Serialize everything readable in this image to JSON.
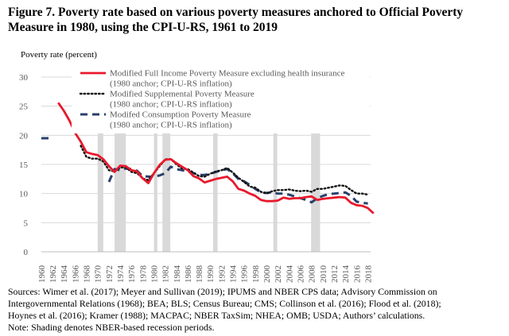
{
  "figure_title": "Figure 7. Poverty rate based on various poverty measures anchored to Official Poverty Measure in 1980, using the CPI-U-RS, 1961 to 2019",
  "chart_data": {
    "type": "line",
    "ylabel": "Poverty rate (percent)",
    "xlabel": "",
    "ylim": [
      0,
      30
    ],
    "yticks": [
      0,
      5,
      10,
      15,
      20,
      25,
      30
    ],
    "xlim": [
      1960,
      2019
    ],
    "xticks": [
      1960,
      1962,
      1964,
      1966,
      1968,
      1970,
      1972,
      1974,
      1976,
      1978,
      1980,
      1982,
      1984,
      1986,
      1988,
      1990,
      1992,
      1994,
      1996,
      1998,
      2000,
      2002,
      2004,
      2006,
      2008,
      2010,
      2012,
      2014,
      2016,
      2018
    ],
    "grid": "horizontal",
    "legend_position": "top",
    "recessions": [
      [
        1970,
        1971
      ],
      [
        1973,
        1975
      ],
      [
        1980,
        1980.6
      ],
      [
        1981.5,
        1982.9
      ],
      [
        1990.5,
        1991.3
      ],
      [
        2001.2,
        2001.9
      ],
      [
        2007.9,
        2009.5
      ]
    ],
    "series": [
      {
        "name": "Modified Full Income Poverty Measure excluding health insurance",
        "sub": "(1980 anchor; CPI-U-RS inflation)",
        "color": "#e8192c",
        "style": "solid",
        "x": [
          1963,
          1964,
          1965,
          1966,
          1967,
          1968,
          1969,
          1970,
          1971,
          1972,
          1973,
          1974,
          1975,
          1976,
          1977,
          1978,
          1979,
          1980,
          1981,
          1982,
          1983,
          1984,
          1985,
          1986,
          1987,
          1988,
          1989,
          1990,
          1991,
          1992,
          1993,
          1994,
          1995,
          1996,
          1997,
          1998,
          1999,
          2000,
          2001,
          2002,
          2003,
          2004,
          2005,
          2006,
          2007,
          2008,
          2009,
          2010,
          2011,
          2012,
          2013,
          2014,
          2015,
          2016,
          2017,
          2018,
          2019
        ],
        "values": [
          25.6,
          24.2,
          22.5,
          20.4,
          18.9,
          17.1,
          16.8,
          16.6,
          15.9,
          14.7,
          13.7,
          14.8,
          14.7,
          14.0,
          13.8,
          12.6,
          11.8,
          13.5,
          14.9,
          15.8,
          15.9,
          15.2,
          14.6,
          14.0,
          13.0,
          12.6,
          11.9,
          12.2,
          12.5,
          12.7,
          12.9,
          12.1,
          10.8,
          10.5,
          10.0,
          9.6,
          8.9,
          8.7,
          8.7,
          8.8,
          9.3,
          9.1,
          9.2,
          9.2,
          9.4,
          9.5,
          8.9,
          9.1,
          9.2,
          9.3,
          9.4,
          9.3,
          8.4,
          8.0,
          7.9,
          7.5,
          6.6
        ]
      },
      {
        "name": "Modified Supplemental Poverty Measure",
        "sub": "(1980 anchor; CPI-U-RS inflation)",
        "color": "#111111",
        "style": "dotted",
        "x": [
          1967,
          1968,
          1969,
          1970,
          1971,
          1972,
          1973,
          1974,
          1975,
          1976,
          1977,
          1978,
          1979,
          1980,
          1981,
          1982,
          1983,
          1984,
          1985,
          1986,
          1987,
          1988,
          1989,
          1990,
          1991,
          1992,
          1993,
          1994,
          1995,
          1996,
          1997,
          1998,
          1999,
          2000,
          2001,
          2002,
          2003,
          2004,
          2005,
          2006,
          2007,
          2008,
          2009,
          2010,
          2011,
          2012,
          2013,
          2014,
          2015,
          2016,
          2017,
          2018
        ],
        "values": [
          18.2,
          16.3,
          16.0,
          16.0,
          15.5,
          14.0,
          13.8,
          14.5,
          14.5,
          13.7,
          13.5,
          12.6,
          12.3,
          13.5,
          14.7,
          15.9,
          15.9,
          15.0,
          14.3,
          14.2,
          13.6,
          13.0,
          12.9,
          13.4,
          13.8,
          14.0,
          14.4,
          13.6,
          12.7,
          12.0,
          11.2,
          11.0,
          10.3,
          10.0,
          10.4,
          10.6,
          10.6,
          10.7,
          10.5,
          10.4,
          10.5,
          10.3,
          10.8,
          10.8,
          11.0,
          11.2,
          11.4,
          11.3,
          10.6,
          10.0,
          10.0,
          9.8
        ]
      },
      {
        "name": "Modifed Consumption Poverty Measure",
        "sub": "(1980 anchor; CPI-U-RS inflation)",
        "color": "#2a3f6b",
        "style": "dashed",
        "x": [
          1960,
          1961,
          1962,
          1972,
          1973,
          1974,
          1975,
          1976,
          1977,
          1978,
          1979,
          1980,
          1981,
          1982,
          1983,
          1984,
          1985,
          1986,
          1987,
          1988,
          1989,
          1990,
          1991,
          1992,
          1993,
          1994,
          1995,
          1996,
          1997,
          1998,
          1999,
          2000,
          2001,
          2002,
          2003,
          2004,
          2005,
          2006,
          2007,
          2008,
          2009,
          2010,
          2011,
          2012,
          2013,
          2014,
          2015,
          2016,
          2017,
          2018
        ],
        "values": [
          19.5,
          19.5,
          19.5,
          12.0,
          14.2,
          14.0,
          14.3,
          14.2,
          13.9,
          13.0,
          12.9,
          12.9,
          13.1,
          13.5,
          14.6,
          14.2,
          14.0,
          13.8,
          13.5,
          13.2,
          13.2,
          13.4,
          13.7,
          14.0,
          14.2,
          13.5,
          12.5,
          12.1,
          11.5,
          10.8,
          10.2,
          10.1,
          10.2,
          10.0,
          10.0,
          9.8,
          9.5,
          9.2,
          8.9,
          8.5,
          9.2,
          9.6,
          9.9,
          10.0,
          10.1,
          10.2,
          9.6,
          8.6,
          8.4,
          8.3
        ]
      }
    ]
  },
  "notes": {
    "sources_line1": "Sources: Wimer et al. (2017); Meyer and Sullivan (2019); IPUMS and NBER CPS data; Advisory Commission on",
    "sources_line2": "Intergovernmental Relations (1968); BEA; BLS; Census Bureau; CMS; Collinson et al. (2016); Flood et al. (2018);",
    "sources_line3": "Hoynes et al. (2016); Kramer (1988); MACPAC; NBER TaxSim; NHEA; OMB; USDA; Authors’ calculations.",
    "shading_note": "Note: Shading denotes NBER-based recession periods."
  }
}
